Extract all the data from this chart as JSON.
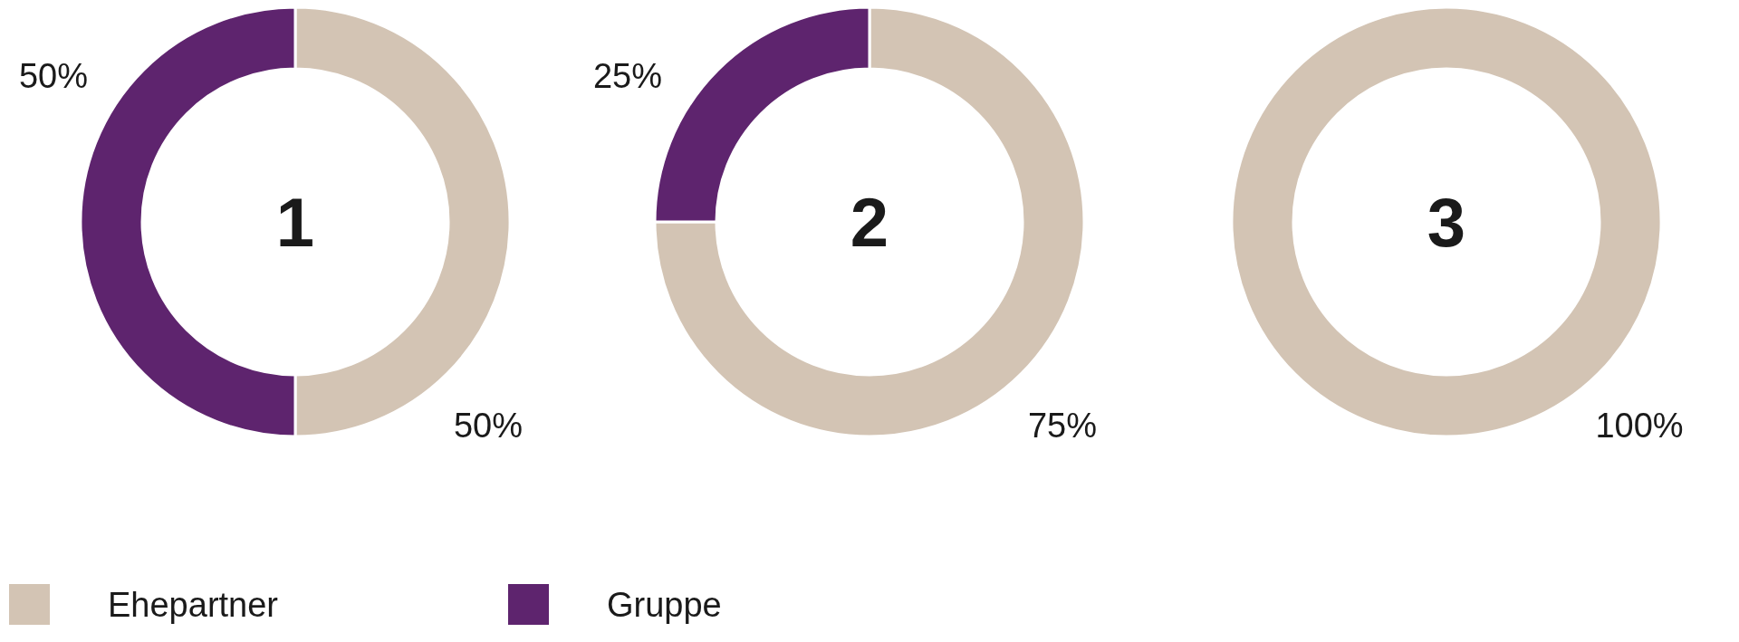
{
  "chart_data": [
    {
      "type": "donut",
      "title": "1",
      "categories": [
        "Ehepartner",
        "Gruppe"
      ],
      "values": [
        50,
        50
      ],
      "colors": [
        "#d3c4b4",
        "#5e246e"
      ],
      "value_labels": [
        "50%",
        "50%"
      ],
      "legend": "bottom"
    },
    {
      "type": "donut",
      "title": "2",
      "categories": [
        null,
        null
      ],
      "values": [
        75,
        25
      ],
      "colors": [
        "#d3c4b4",
        "#5e246e"
      ],
      "value_labels": [
        "75%",
        "25%"
      ]
    },
    {
      "type": "donut",
      "title": "3",
      "categories": [
        null
      ],
      "values": [
        100
      ],
      "colors": [
        "#d3c4b4"
      ],
      "value_labels": [
        "100%"
      ]
    }
  ]
}
